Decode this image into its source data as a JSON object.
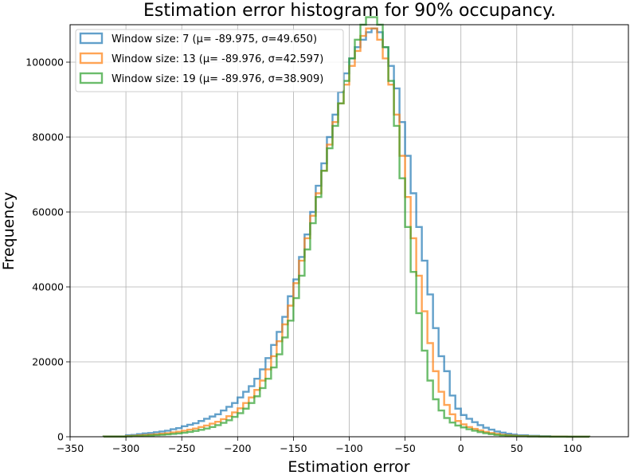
{
  "chart_data": {
    "type": "histogram",
    "title": "Estimation error histogram for 90% occupancy.",
    "xlabel": "Estimation error",
    "ylabel": "Frequency",
    "xlim": [
      -350,
      150
    ],
    "ylim": [
      0,
      110000
    ],
    "xticks": [
      -350,
      -300,
      -250,
      -200,
      -150,
      -100,
      -50,
      0,
      50,
      100
    ],
    "xtick_labels": [
      "−350",
      "−300",
      "−250",
      "−200",
      "−150",
      "−100",
      "−50",
      "0",
      "50",
      "100"
    ],
    "yticks": [
      0,
      20000,
      40000,
      60000,
      80000,
      100000
    ],
    "ytick_labels": [
      "0",
      "20000",
      "40000",
      "60000",
      "80000",
      "100000"
    ],
    "grid": true,
    "legend_position": "top-left",
    "histtype": "step",
    "series": [
      {
        "name": "Window size: 7 (μ= -89.975, σ=49.650)",
        "color": "#1f77b4",
        "bins": [
          [
            -320,
            -300
          ],
          [
            -300,
            -295
          ],
          [
            -295,
            -290
          ],
          [
            -290,
            -285
          ],
          [
            -285,
            -280
          ],
          [
            -280,
            -275
          ],
          [
            -275,
            -270
          ],
          [
            -270,
            -265
          ],
          [
            -265,
            -260
          ],
          [
            -260,
            -255
          ],
          [
            -255,
            -250
          ],
          [
            -250,
            -245
          ],
          [
            -245,
            -240
          ],
          [
            -240,
            -235
          ],
          [
            -235,
            -230
          ],
          [
            -230,
            -225
          ],
          [
            -225,
            -220
          ],
          [
            -220,
            -215
          ],
          [
            -215,
            -210
          ],
          [
            -210,
            -205
          ],
          [
            -205,
            -200
          ],
          [
            -200,
            -195
          ],
          [
            -195,
            -190
          ],
          [
            -190,
            -185
          ],
          [
            -185,
            -180
          ],
          [
            -180,
            -175
          ],
          [
            -175,
            -170
          ],
          [
            -170,
            -165
          ],
          [
            -165,
            -160
          ],
          [
            -160,
            -155
          ],
          [
            -155,
            -150
          ],
          [
            -150,
            -145
          ],
          [
            -145,
            -140
          ],
          [
            -140,
            -135
          ],
          [
            -135,
            -130
          ],
          [
            -130,
            -125
          ],
          [
            -125,
            -120
          ],
          [
            -120,
            -115
          ],
          [
            -115,
            -110
          ],
          [
            -110,
            -105
          ],
          [
            -105,
            -100
          ],
          [
            -100,
            -95
          ],
          [
            -95,
            -90
          ],
          [
            -90,
            -85
          ],
          [
            -85,
            -80
          ],
          [
            -80,
            -75
          ],
          [
            -75,
            -70
          ],
          [
            -70,
            -65
          ],
          [
            -65,
            -60
          ],
          [
            -60,
            -55
          ],
          [
            -55,
            -50
          ],
          [
            -50,
            -45
          ],
          [
            -45,
            -40
          ],
          [
            -40,
            -35
          ],
          [
            -35,
            -30
          ],
          [
            -30,
            -25
          ],
          [
            -25,
            -20
          ],
          [
            -20,
            -15
          ],
          [
            -15,
            -10
          ],
          [
            -10,
            -5
          ],
          [
            -5,
            0
          ],
          [
            0,
            5
          ],
          [
            5,
            10
          ],
          [
            10,
            15
          ],
          [
            15,
            20
          ],
          [
            20,
            25
          ],
          [
            25,
            30
          ],
          [
            30,
            35
          ],
          [
            35,
            40
          ],
          [
            40,
            45
          ],
          [
            45,
            50
          ],
          [
            50,
            60
          ],
          [
            60,
            70
          ],
          [
            70,
            80
          ],
          [
            80,
            95
          ],
          [
            95,
            115
          ]
        ],
        "values": [
          100,
          400,
          500,
          700,
          900,
          1000,
          1200,
          1400,
          1600,
          2000,
          2300,
          2800,
          3200,
          3600,
          4200,
          4800,
          5400,
          6000,
          7000,
          8000,
          9000,
          10500,
          12000,
          13500,
          15500,
          18000,
          21000,
          24500,
          28000,
          32000,
          37500,
          42000,
          48000,
          54000,
          60000,
          67000,
          73000,
          80000,
          86000,
          92000,
          97000,
          101000,
          104000,
          106000,
          108000,
          109000,
          108000,
          104000,
          99000,
          93000,
          84000,
          75000,
          65000,
          56000,
          47000,
          38000,
          29000,
          21500,
          17500,
          11000,
          7500,
          5800,
          4800,
          3900,
          3100,
          2400,
          1900,
          1400,
          1100,
          800,
          600,
          400,
          250,
          150,
          60,
          20
        ]
      },
      {
        "name": "Window size: 13 (μ= -89.976, σ=42.597)",
        "color": "#ff7f0e",
        "bins": [
          [
            -320,
            -300
          ],
          [
            -300,
            -295
          ],
          [
            -295,
            -290
          ],
          [
            -290,
            -285
          ],
          [
            -285,
            -280
          ],
          [
            -280,
            -275
          ],
          [
            -275,
            -270
          ],
          [
            -270,
            -265
          ],
          [
            -265,
            -260
          ],
          [
            -260,
            -255
          ],
          [
            -255,
            -250
          ],
          [
            -250,
            -245
          ],
          [
            -245,
            -240
          ],
          [
            -240,
            -235
          ],
          [
            -235,
            -230
          ],
          [
            -230,
            -225
          ],
          [
            -225,
            -220
          ],
          [
            -220,
            -215
          ],
          [
            -215,
            -210
          ],
          [
            -210,
            -205
          ],
          [
            -205,
            -200
          ],
          [
            -200,
            -195
          ],
          [
            -195,
            -190
          ],
          [
            -190,
            -185
          ],
          [
            -185,
            -180
          ],
          [
            -180,
            -175
          ],
          [
            -175,
            -170
          ],
          [
            -170,
            -165
          ],
          [
            -165,
            -160
          ],
          [
            -160,
            -155
          ],
          [
            -155,
            -150
          ],
          [
            -150,
            -145
          ],
          [
            -145,
            -140
          ],
          [
            -140,
            -135
          ],
          [
            -135,
            -130
          ],
          [
            -130,
            -125
          ],
          [
            -125,
            -120
          ],
          [
            -120,
            -115
          ],
          [
            -115,
            -110
          ],
          [
            -110,
            -105
          ],
          [
            -105,
            -100
          ],
          [
            -100,
            -95
          ],
          [
            -95,
            -90
          ],
          [
            -90,
            -85
          ],
          [
            -85,
            -80
          ],
          [
            -80,
            -75
          ],
          [
            -75,
            -70
          ],
          [
            -70,
            -65
          ],
          [
            -65,
            -60
          ],
          [
            -60,
            -55
          ],
          [
            -55,
            -50
          ],
          [
            -50,
            -45
          ],
          [
            -45,
            -40
          ],
          [
            -40,
            -35
          ],
          [
            -35,
            -30
          ],
          [
            -30,
            -25
          ],
          [
            -25,
            -20
          ],
          [
            -20,
            -15
          ],
          [
            -15,
            -10
          ],
          [
            -10,
            -5
          ],
          [
            -5,
            0
          ],
          [
            0,
            5
          ],
          [
            5,
            10
          ],
          [
            10,
            15
          ],
          [
            15,
            20
          ],
          [
            20,
            25
          ],
          [
            25,
            30
          ],
          [
            30,
            35
          ],
          [
            35,
            40
          ],
          [
            40,
            45
          ],
          [
            45,
            50
          ],
          [
            50,
            60
          ],
          [
            60,
            70
          ],
          [
            70,
            80
          ],
          [
            80,
            95
          ],
          [
            95,
            115
          ]
        ],
        "values": [
          50,
          200,
          250,
          350,
          450,
          550,
          650,
          800,
          950,
          1150,
          1350,
          1600,
          1900,
          2200,
          2600,
          3000,
          3500,
          4000,
          4700,
          5500,
          6500,
          7600,
          9000,
          10500,
          12500,
          15000,
          18000,
          21500,
          25500,
          30000,
          35000,
          41000,
          47000,
          53000,
          59000,
          65000,
          71000,
          78000,
          84000,
          89000,
          94000,
          99000,
          103000,
          107000,
          109000,
          109000,
          106000,
          101000,
          94000,
          86000,
          75000,
          64000,
          53000,
          43000,
          33500,
          25000,
          17500,
          12000,
          8500,
          6000,
          4200,
          3300,
          2600,
          2100,
          1700,
          1300,
          1000,
          750,
          550,
          400,
          300,
          200,
          120,
          70,
          30,
          10
        ]
      },
      {
        "name": "Window size: 19 (μ= -89.976, σ=38.909)",
        "color": "#2ca02c",
        "bins": [
          [
            -320,
            -300
          ],
          [
            -300,
            -295
          ],
          [
            -295,
            -290
          ],
          [
            -290,
            -285
          ],
          [
            -285,
            -280
          ],
          [
            -280,
            -275
          ],
          [
            -275,
            -270
          ],
          [
            -270,
            -265
          ],
          [
            -265,
            -260
          ],
          [
            -260,
            -255
          ],
          [
            -255,
            -250
          ],
          [
            -250,
            -245
          ],
          [
            -245,
            -240
          ],
          [
            -240,
            -235
          ],
          [
            -235,
            -230
          ],
          [
            -230,
            -225
          ],
          [
            -225,
            -220
          ],
          [
            -220,
            -215
          ],
          [
            -215,
            -210
          ],
          [
            -210,
            -205
          ],
          [
            -205,
            -200
          ],
          [
            -200,
            -195
          ],
          [
            -195,
            -190
          ],
          [
            -190,
            -185
          ],
          [
            -185,
            -180
          ],
          [
            -180,
            -175
          ],
          [
            -175,
            -170
          ],
          [
            -170,
            -165
          ],
          [
            -165,
            -160
          ],
          [
            -160,
            -155
          ],
          [
            -155,
            -150
          ],
          [
            -150,
            -145
          ],
          [
            -145,
            -140
          ],
          [
            -140,
            -135
          ],
          [
            -135,
            -130
          ],
          [
            -130,
            -125
          ],
          [
            -125,
            -120
          ],
          [
            -120,
            -115
          ],
          [
            -115,
            -110
          ],
          [
            -110,
            -105
          ],
          [
            -105,
            -100
          ],
          [
            -100,
            -95
          ],
          [
            -95,
            -90
          ],
          [
            -90,
            -85
          ],
          [
            -85,
            -80
          ],
          [
            -80,
            -75
          ],
          [
            -75,
            -70
          ],
          [
            -70,
            -65
          ],
          [
            -65,
            -60
          ],
          [
            -60,
            -55
          ],
          [
            -55,
            -50
          ],
          [
            -50,
            -45
          ],
          [
            -45,
            -40
          ],
          [
            -40,
            -35
          ],
          [
            -35,
            -30
          ],
          [
            -30,
            -25
          ],
          [
            -25,
            -20
          ],
          [
            -20,
            -15
          ],
          [
            -15,
            -10
          ],
          [
            -10,
            -5
          ],
          [
            -5,
            0
          ],
          [
            0,
            5
          ],
          [
            5,
            10
          ],
          [
            10,
            15
          ],
          [
            15,
            20
          ],
          [
            20,
            25
          ],
          [
            25,
            30
          ],
          [
            30,
            35
          ],
          [
            35,
            40
          ],
          [
            40,
            45
          ],
          [
            45,
            50
          ],
          [
            50,
            60
          ],
          [
            60,
            70
          ],
          [
            70,
            80
          ],
          [
            80,
            95
          ],
          [
            95,
            115
          ]
        ],
        "values": [
          30,
          100,
          150,
          200,
          280,
          350,
          430,
          520,
          620,
          750,
          900,
          1080,
          1300,
          1550,
          1850,
          2200,
          2600,
          3100,
          3700,
          4400,
          5300,
          6300,
          7500,
          9000,
          10800,
          13000,
          15500,
          18500,
          22000,
          26500,
          31000,
          37000,
          43000,
          50000,
          57000,
          64000,
          71000,
          77000,
          83000,
          89000,
          95000,
          101000,
          106000,
          110000,
          112000,
          112000,
          110000,
          104000,
          95000,
          83000,
          69000,
          56000,
          44000,
          33000,
          23000,
          15000,
          10000,
          7000,
          5000,
          3800,
          3000,
          2500,
          2000,
          1600,
          1250,
          950,
          700,
          500,
          380,
          280,
          200,
          120,
          70,
          40,
          15,
          5
        ]
      }
    ]
  }
}
